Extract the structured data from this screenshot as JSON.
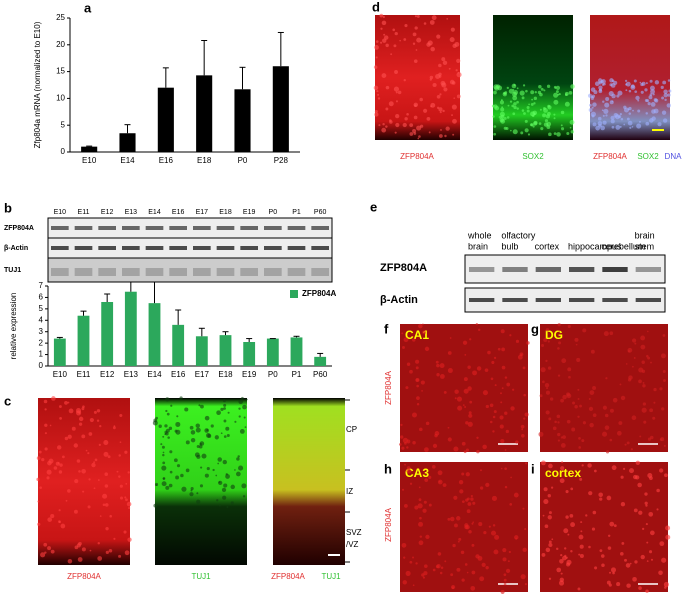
{
  "panel_letters": [
    "a",
    "b",
    "c",
    "d",
    "e",
    "f",
    "g",
    "h",
    "i"
  ],
  "chart_data": [
    {
      "type": "bar",
      "y_label": "Zfp804a mRNA (normalized to E10)",
      "categories": [
        "E10",
        "E14",
        "E16",
        "E18",
        "P0",
        "P28"
      ],
      "values": [
        1,
        3.5,
        12,
        14.3,
        11.7,
        16
      ],
      "errors": [
        0.1,
        1.6,
        3.7,
        6.5,
        4.1,
        6.3
      ],
      "color": "#000000",
      "ylim": [
        0,
        25
      ],
      "yticks": [
        0,
        5,
        10,
        15,
        20,
        25
      ]
    },
    {
      "type": "bar",
      "y_label": "relative expression",
      "categories": [
        "E10",
        "E11",
        "E12",
        "E13",
        "E14",
        "E16",
        "E17",
        "E18",
        "E19",
        "P0",
        "P1",
        "P60"
      ],
      "series": [
        {
          "name": "ZFP804A",
          "color": "#2ca85c",
          "values": [
            2.4,
            4.4,
            5.6,
            6.5,
            5.5,
            3.6,
            2.6,
            2.7,
            2.1,
            2.4,
            2.5,
            0.8
          ],
          "errors": [
            0.1,
            0.4,
            0.7,
            0.9,
            2.0,
            1.3,
            0.7,
            0.3,
            0.3,
            0,
            0.1,
            0.3
          ]
        }
      ],
      "ylim": [
        0,
        7
      ],
      "yticks": [
        0,
        1,
        2,
        3,
        4,
        5,
        6,
        7
      ],
      "legend": "upper right"
    }
  ],
  "panel_b": {
    "lanes": [
      "E10",
      "E11",
      "E12",
      "E13",
      "E14",
      "E16",
      "E17",
      "E18",
      "E19",
      "P0",
      "P1",
      "P60"
    ],
    "rows": [
      "ZFP804A",
      "β-Actin",
      "TUJ1"
    ]
  },
  "panel_c": {
    "captions": [
      "ZFP804A",
      "TUJ1"
    ],
    "merge": [
      "ZFP804A",
      "TUJ1"
    ],
    "layers": [
      "CP",
      "IZ",
      "SVZ",
      "/VZ"
    ]
  },
  "panel_d": {
    "captions": [
      "ZFP804A",
      "SOX2"
    ],
    "merge": [
      "ZFP804A",
      "SOX2",
      "DNA"
    ]
  },
  "panel_e": {
    "lanes": [
      [
        "whole",
        "brain"
      ],
      [
        "olfactory",
        "bulb"
      ],
      [
        "cortex"
      ],
      [
        "hippocampus"
      ],
      [
        "cerebellum"
      ],
      [
        "brain",
        "stem"
      ]
    ],
    "rows": [
      "ZFP804A",
      "β-Actin"
    ]
  },
  "panel_fi": {
    "regions": [
      "CA1",
      "DG",
      "CA3",
      "cortex"
    ],
    "side_labels": [
      "ZFP804A",
      "ZFP804A"
    ]
  }
}
